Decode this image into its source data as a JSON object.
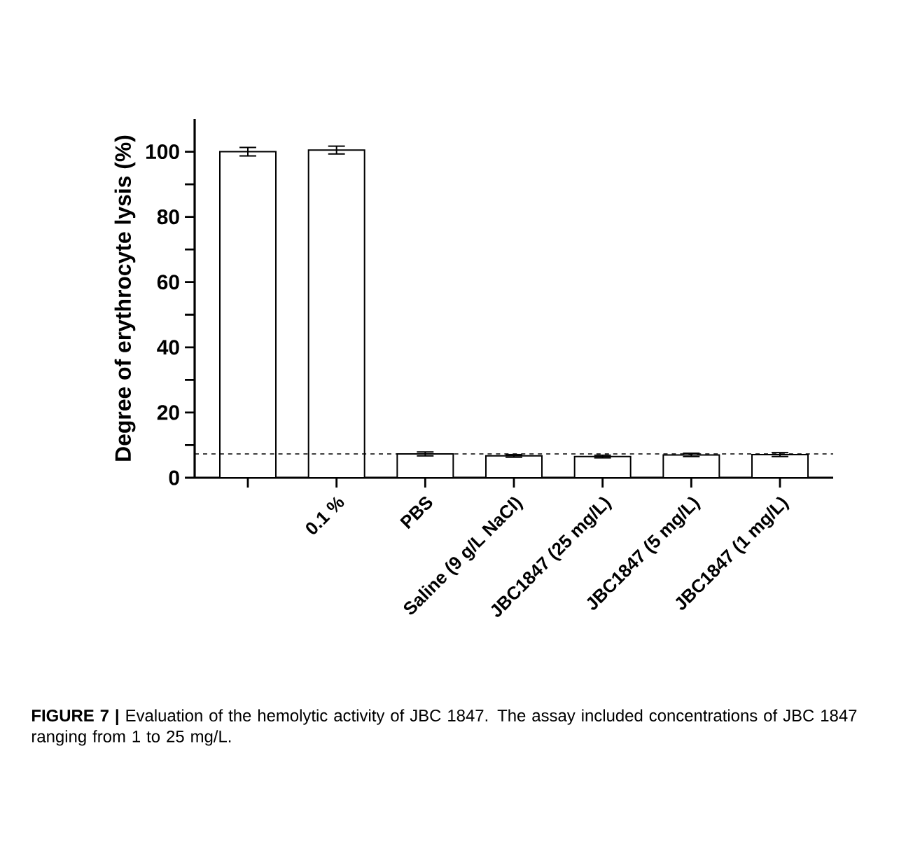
{
  "chart_data": {
    "type": "bar",
    "ylabel": "Degree of erythrocyte lysis (%)",
    "categories": [
      null,
      "0.1 %",
      "PBS",
      "Saline (9 g/L NaCl)",
      "JBC1847 (25 mg/L)",
      "JBC1847 (5 mg/L)",
      "JBC1847 (1 mg/L)"
    ],
    "values": [
      100,
      100.5,
      7.3,
      6.7,
      6.5,
      7.0,
      7.1
    ],
    "errors": [
      1.3,
      1.2,
      0.6,
      0.4,
      0.4,
      0.5,
      0.6
    ],
    "color": "#ffffff",
    "ylim": [
      0,
      110
    ],
    "yticks": [
      0,
      {
        "value": 10,
        "label": null
      },
      20,
      {
        "value": 30,
        "label": null
      },
      40,
      {
        "value": 50,
        "label": null
      },
      60,
      {
        "value": 70,
        "label": null
      },
      80,
      {
        "value": 90,
        "label": null
      },
      100
    ],
    "ref_lines": [
      {
        "axis": "y",
        "value": 7.3,
        "color": "#000000",
        "line_style": "dashed"
      }
    ],
    "annotations": [
      "**FIGURE 7 |** Evaluation of the hemolytic activity of JBC 1847. The assay included concentrations of JBC 1847 ranging from 1 to 25 mg/L."
    ],
    "grid": false
  }
}
